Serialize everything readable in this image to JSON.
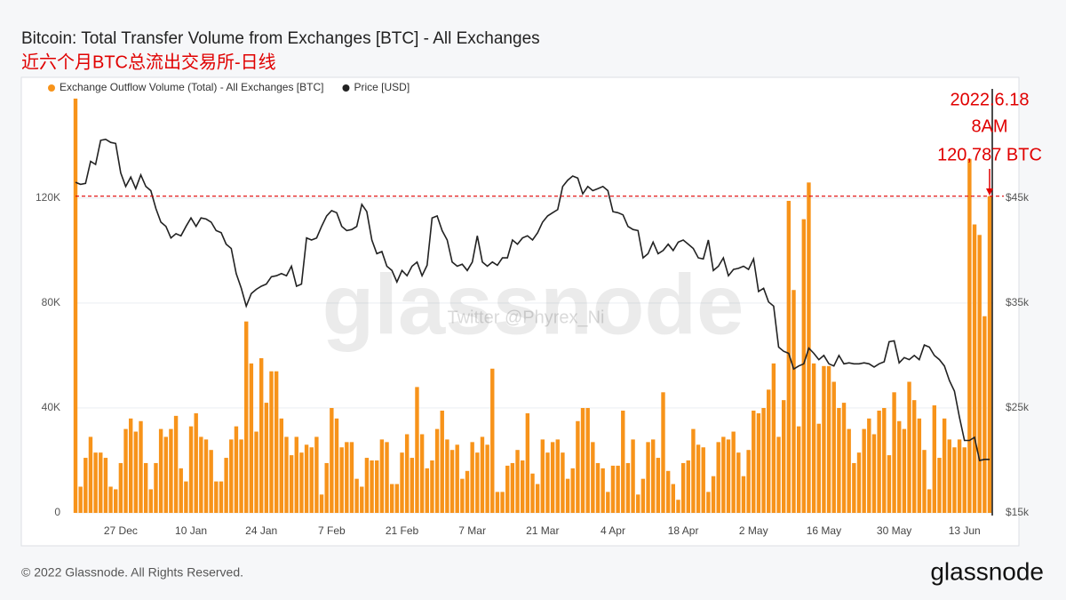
{
  "chart_data": {
    "type": "bar",
    "title": "Bitcoin: Total Transfer Volume from Exchanges [BTC] - All Exchanges",
    "subtitle": "近六个月BTC总流出交易所-日线",
    "watermark": "glassnode",
    "credit": "Twitter @Phyrex_Ni",
    "annotations": [
      "2022.6.18",
      "8AM",
      "120,787 BTC"
    ],
    "footer": "© 2022 Glassnode. All Rights Reserved.",
    "logo": "glassnode",
    "categories": [
      null,
      null,
      null,
      null,
      null,
      null,
      null,
      null,
      null,
      "27 Dec",
      null,
      null,
      null,
      null,
      null,
      null,
      null,
      null,
      null,
      null,
      null,
      null,
      null,
      "10 Jan",
      null,
      null,
      null,
      null,
      null,
      null,
      null,
      null,
      null,
      null,
      null,
      null,
      null,
      "24 Jan",
      null,
      null,
      null,
      null,
      null,
      null,
      null,
      null,
      null,
      null,
      null,
      null,
      null,
      "7 Feb",
      null,
      null,
      null,
      null,
      null,
      null,
      null,
      null,
      null,
      null,
      null,
      null,
      null,
      "21 Feb",
      null,
      null,
      null,
      null,
      null,
      null,
      null,
      null,
      null,
      null,
      null,
      null,
      null,
      "7 Mar",
      null,
      null,
      null,
      null,
      null,
      null,
      null,
      null,
      null,
      null,
      null,
      null,
      null,
      "21 Mar",
      null,
      null,
      null,
      null,
      null,
      null,
      null,
      null,
      null,
      null,
      null,
      null,
      null,
      "4 Apr",
      null,
      null,
      null,
      null,
      null,
      null,
      null,
      null,
      null,
      null,
      null,
      null,
      null,
      "18 Apr",
      null,
      null,
      null,
      null,
      null,
      null,
      null,
      null,
      null,
      null,
      null,
      null,
      null,
      "2 May",
      null,
      null,
      null,
      null,
      null,
      null,
      null,
      null,
      null,
      null,
      null,
      null,
      null,
      "16 May",
      null,
      null,
      null,
      null,
      null,
      null,
      null,
      null,
      null,
      null,
      null,
      null,
      null,
      "30 May",
      null,
      null,
      null,
      null,
      null,
      null,
      null,
      null,
      null,
      null,
      null,
      null,
      null,
      "13 Jun",
      null,
      null,
      null,
      null,
      null
    ],
    "series": [
      {
        "name": "Exchange Outflow Volume (Total) - All Exchanges [BTC]",
        "color": "#f7931a",
        "type": "bar",
        "values": [
          158000,
          10000,
          21000,
          29000,
          23000,
          23000,
          21000,
          10000,
          9000,
          19000,
          32000,
          36000,
          31000,
          35000,
          19000,
          9000,
          19000,
          32000,
          29000,
          32000,
          37000,
          17000,
          12000,
          33000,
          38000,
          29000,
          28000,
          24000,
          12000,
          12000,
          21000,
          28000,
          33000,
          28000,
          73000,
          57000,
          31000,
          59000,
          42000,
          54000,
          54000,
          36000,
          29000,
          22000,
          29000,
          23000,
          26000,
          25000,
          29000,
          7000,
          19000,
          40000,
          36000,
          25000,
          27000,
          27000,
          13000,
          10000,
          21000,
          20000,
          20000,
          28000,
          27000,
          11000,
          11000,
          23000,
          30000,
          21000,
          48000,
          30000,
          17000,
          20000,
          32000,
          39000,
          28000,
          24000,
          26000,
          13000,
          16000,
          27000,
          23000,
          29000,
          26000,
          55000,
          8000,
          8000,
          18000,
          19000,
          24000,
          20000,
          38000,
          15000,
          11000,
          28000,
          23000,
          27000,
          28000,
          23000,
          13000,
          17000,
          35000,
          40000,
          40000,
          27000,
          19000,
          17000,
          8000,
          18000,
          18000,
          39000,
          19000,
          28000,
          7000,
          13000,
          27000,
          28000,
          21000,
          46000,
          16000,
          11000,
          5000,
          19000,
          20000,
          32000,
          26000,
          25000,
          8000,
          14000,
          27000,
          29000,
          28000,
          31000,
          23000,
          14000,
          24000,
          39000,
          38000,
          40000,
          47000,
          57000,
          29000,
          43000,
          119000,
          85000,
          33000,
          112000,
          126000,
          57000,
          34000,
          56000,
          56000,
          50000,
          40000,
          42000,
          32000,
          19000,
          23000,
          32000,
          36000,
          30000,
          39000,
          40000,
          22000,
          46000,
          35000,
          32000,
          50000,
          43000,
          36000,
          24000,
          9000,
          41000,
          21000,
          36000,
          28000,
          25000,
          28000,
          25000,
          135000,
          110000,
          106000,
          75000,
          120787
        ]
      },
      {
        "name": "Price [USD]",
        "color": "#222222",
        "type": "line",
        "axis": "y2",
        "values": [
          46500,
          46300,
          46400,
          48500,
          48200,
          50500,
          50600,
          50300,
          50200,
          47400,
          46100,
          47000,
          45900,
          47200,
          46100,
          45700,
          44000,
          42700,
          42300,
          41200,
          41600,
          41400,
          42300,
          43100,
          42300,
          43100,
          43000,
          42700,
          41900,
          41700,
          40600,
          40200,
          37800,
          36400,
          34700,
          35900,
          36300,
          36600,
          36800,
          37500,
          37600,
          37800,
          37600,
          38500,
          36600,
          36800,
          41200,
          41000,
          41200,
          42300,
          43300,
          43800,
          43600,
          42300,
          41900,
          42000,
          42300,
          44400,
          43700,
          41000,
          39700,
          39900,
          38500,
          38100,
          37000,
          38100,
          37600,
          38500,
          38900,
          37600,
          38600,
          43100,
          43300,
          41900,
          41000,
          38900,
          38500,
          38700,
          38100,
          38900,
          41400,
          38900,
          38500,
          38900,
          38600,
          39300,
          39300,
          41000,
          40600,
          41200,
          41400,
          41000,
          41700,
          42700,
          43300,
          43600,
          43900,
          46100,
          46700,
          47100,
          46900,
          45400,
          46100,
          45700,
          45900,
          46100,
          45700,
          43700,
          43600,
          43400,
          42300,
          42000,
          41900,
          39300,
          39700,
          40800,
          39700,
          40000,
          40600,
          40000,
          40800,
          41000,
          40600,
          40200,
          39300,
          39200,
          41000,
          38100,
          38500,
          39300,
          37600,
          38200,
          38300,
          38500,
          38200,
          39200,
          36100,
          36400,
          35100,
          34700,
          30800,
          30400,
          30200,
          28700,
          29000,
          29200,
          30700,
          30200,
          29600,
          30000,
          29200,
          29000,
          30000,
          29200,
          29300,
          29200,
          29200,
          29300,
          29200,
          28900,
          29200,
          29400,
          31300,
          31400,
          29300,
          29800,
          29600,
          30000,
          29600,
          31000,
          30800,
          30000,
          29600,
          29000,
          27600,
          26600,
          24100,
          21900,
          21900,
          22200,
          20000,
          20100,
          20100
        ]
      }
    ],
    "ylim": [
      0,
      161700
    ],
    "yticks": [
      0,
      {
        "value": 40000,
        "label": "40K"
      },
      {
        "value": 80000,
        "label": "80K"
      },
      {
        "value": 120000,
        "label": "120K"
      }
    ],
    "y2lim": [
      15000,
      55400
    ],
    "y2ticks": [
      {
        "value": 15000,
        "label": "$15k"
      },
      {
        "value": 25000,
        "label": "$25k"
      },
      {
        "value": 35000,
        "label": "$35k"
      },
      {
        "value": 45000,
        "label": "$45k"
      }
    ],
    "grid": true
  }
}
